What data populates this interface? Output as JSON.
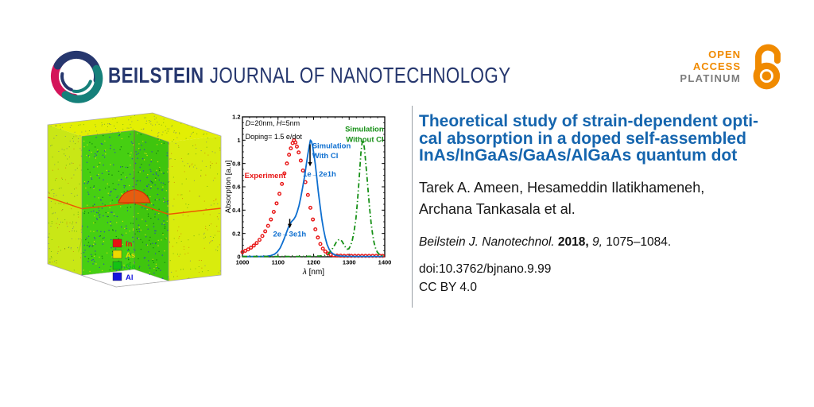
{
  "header": {
    "journal_bold": "BEILSTEIN",
    "journal_rest": "JOURNAL OF NANOTECHNOLOGY",
    "brand": {
      "navy": "#26376E",
      "teal": "#15807A",
      "pink": "#D4145A"
    }
  },
  "open_access": {
    "line1": "OPEN",
    "line2": "ACCESS",
    "line3": "PLATINUM",
    "orange": "#F08A00",
    "gray": "#7C7C7C"
  },
  "article": {
    "title_lines": [
      "Theoretical study of strain-dependent opti-",
      "cal absorption in a doped self-assembled",
      "InAs/InGaAs/GaAs/AlGaAs quantum dot"
    ],
    "title_color": "#1565AE",
    "authors_lines": [
      "Tarek A. Ameen, Hesameddin Ilatikhameneh,",
      "Archana Tankasala et al."
    ],
    "citation": {
      "journal": "Beilstein J. Nanotechnol.",
      "year": "2018,",
      "volume": "9,",
      "pages": "1075–1084."
    },
    "doi": "doi:10.3762/bjnano.9.99",
    "license": "CC BY 4.0"
  },
  "cube_legend": [
    {
      "label": "In",
      "color": "#e81212"
    },
    {
      "label": "As",
      "color": "#eed900"
    },
    {
      "label": "Ga",
      "color": "#14c314"
    },
    {
      "label": "Al",
      "color": "#1414dd"
    }
  ],
  "chart_data": {
    "type": "line",
    "title": "",
    "xlabel_segments": [
      {
        "t": "λ",
        "i": 1
      },
      {
        "t": " [nm]"
      }
    ],
    "ylabel": "Absorption [a.u]",
    "xlim": [
      1000,
      1400
    ],
    "ylim": [
      0,
      1.2
    ],
    "xticks": [
      1000,
      1100,
      1200,
      1300,
      1400
    ],
    "yticks": [
      0,
      0.2,
      0.4,
      0.6,
      0.8,
      1,
      1.2
    ],
    "grid": false,
    "series": [
      {
        "name": "Experiment",
        "color": "#e81616",
        "style": "circles",
        "points": [
          [
            1000,
            0.04
          ],
          [
            1008,
            0.051
          ],
          [
            1016,
            0.063
          ],
          [
            1024,
            0.078
          ],
          [
            1032,
            0.096
          ],
          [
            1040,
            0.118
          ],
          [
            1048,
            0.145
          ],
          [
            1056,
            0.178
          ],
          [
            1064,
            0.218
          ],
          [
            1072,
            0.265
          ],
          [
            1080,
            0.32
          ],
          [
            1088,
            0.385
          ],
          [
            1096,
            0.458
          ],
          [
            1104,
            0.54
          ],
          [
            1111,
            0.625
          ],
          [
            1118,
            0.715
          ],
          [
            1125,
            0.8
          ],
          [
            1131,
            0.875
          ],
          [
            1136,
            0.93
          ],
          [
            1141,
            0.975
          ],
          [
            1145,
            1.0
          ],
          [
            1149,
            0.98
          ],
          [
            1153,
            0.945
          ],
          [
            1158,
            0.895
          ],
          [
            1164,
            0.825
          ],
          [
            1170,
            0.74
          ],
          [
            1177,
            0.64
          ],
          [
            1184,
            0.53
          ],
          [
            1191,
            0.42
          ],
          [
            1198,
            0.32
          ],
          [
            1205,
            0.235
          ],
          [
            1212,
            0.165
          ],
          [
            1219,
            0.11
          ],
          [
            1226,
            0.07
          ],
          [
            1233,
            0.045
          ],
          [
            1240,
            0.028
          ],
          [
            1248,
            0.018
          ],
          [
            1256,
            0.012
          ],
          [
            1266,
            0.01
          ],
          [
            1276,
            0.009
          ],
          [
            1286,
            0.008
          ],
          [
            1296,
            0.008
          ],
          [
            1306,
            0.008
          ],
          [
            1316,
            0.008
          ],
          [
            1326,
            0.008
          ],
          [
            1336,
            0.008
          ],
          [
            1346,
            0.008
          ],
          [
            1356,
            0.008
          ],
          [
            1366,
            0.008
          ],
          [
            1376,
            0.008
          ],
          [
            1386,
            0.008
          ],
          [
            1394,
            0.008
          ]
        ]
      },
      {
        "name": "Simulation With CI",
        "color": "#0e6fd0",
        "style": "solid",
        "points": [
          [
            1000,
            0.003
          ],
          [
            1050,
            0.003
          ],
          [
            1070,
            0.005
          ],
          [
            1080,
            0.01
          ],
          [
            1090,
            0.022
          ],
          [
            1098,
            0.042
          ],
          [
            1106,
            0.075
          ],
          [
            1112,
            0.115
          ],
          [
            1118,
            0.16
          ],
          [
            1124,
            0.21
          ],
          [
            1129,
            0.25
          ],
          [
            1134,
            0.285
          ],
          [
            1139,
            0.305
          ],
          [
            1144,
            0.32
          ],
          [
            1149,
            0.345
          ],
          [
            1154,
            0.385
          ],
          [
            1159,
            0.44
          ],
          [
            1164,
            0.51
          ],
          [
            1169,
            0.59
          ],
          [
            1174,
            0.68
          ],
          [
            1179,
            0.78
          ],
          [
            1184,
            0.88
          ],
          [
            1188,
            0.95
          ],
          [
            1191,
            1.0
          ],
          [
            1194,
            0.99
          ],
          [
            1197,
            0.95
          ],
          [
            1201,
            0.88
          ],
          [
            1205,
            0.79
          ],
          [
            1209,
            0.68
          ],
          [
            1213,
            0.565
          ],
          [
            1218,
            0.44
          ],
          [
            1223,
            0.325
          ],
          [
            1228,
            0.235
          ],
          [
            1233,
            0.16
          ],
          [
            1238,
            0.105
          ],
          [
            1244,
            0.063
          ],
          [
            1250,
            0.037
          ],
          [
            1257,
            0.02
          ],
          [
            1265,
            0.011
          ],
          [
            1276,
            0.006
          ],
          [
            1292,
            0.004
          ],
          [
            1320,
            0.003
          ],
          [
            1396,
            0.003
          ]
        ]
      },
      {
        "name": "Simulation Without CI",
        "color": "#169016",
        "style": "dashdot",
        "points": [
          [
            1000,
            0.002
          ],
          [
            1100,
            0.002
          ],
          [
            1160,
            0.003
          ],
          [
            1200,
            0.004
          ],
          [
            1220,
            0.007
          ],
          [
            1232,
            0.013
          ],
          [
            1242,
            0.028
          ],
          [
            1250,
            0.055
          ],
          [
            1258,
            0.095
          ],
          [
            1264,
            0.125
          ],
          [
            1270,
            0.145
          ],
          [
            1275,
            0.148
          ],
          [
            1280,
            0.132
          ],
          [
            1285,
            0.105
          ],
          [
            1290,
            0.08
          ],
          [
            1294,
            0.065
          ],
          [
            1299,
            0.068
          ],
          [
            1304,
            0.095
          ],
          [
            1309,
            0.145
          ],
          [
            1314,
            0.22
          ],
          [
            1319,
            0.33
          ],
          [
            1323,
            0.46
          ],
          [
            1327,
            0.62
          ],
          [
            1330,
            0.76
          ],
          [
            1333,
            0.89
          ],
          [
            1336,
            0.97
          ],
          [
            1338,
            1.0
          ],
          [
            1340,
            0.985
          ],
          [
            1343,
            0.925
          ],
          [
            1346,
            0.83
          ],
          [
            1350,
            0.69
          ],
          [
            1354,
            0.54
          ],
          [
            1358,
            0.4
          ],
          [
            1362,
            0.28
          ],
          [
            1366,
            0.19
          ],
          [
            1370,
            0.12
          ],
          [
            1374,
            0.075
          ],
          [
            1379,
            0.04
          ],
          [
            1385,
            0.02
          ],
          [
            1391,
            0.01
          ],
          [
            1396,
            0.006
          ]
        ]
      }
    ],
    "texts": [
      {
        "segments": [
          {
            "t": "D",
            "i": 1
          },
          {
            "t": "=20nm, "
          },
          {
            "t": "H",
            "i": 1
          },
          {
            "t": "=5nm"
          }
        ],
        "x": 1008,
        "y": 1.125,
        "color": "#000000",
        "anchor": "start",
        "size": 9,
        "bold": false
      },
      {
        "text": "Doping= 1.5 e/dot",
        "x": 1008,
        "y": 1.01,
        "color": "#000000",
        "anchor": "start",
        "size": 9,
        "bold": false
      },
      {
        "text": "Experiment",
        "x": 1006,
        "y": 0.675,
        "color": "#e81616",
        "anchor": "start",
        "size": 9.5,
        "bold": true
      },
      {
        "text": "Simulation",
        "x": 1196,
        "y": 0.93,
        "color": "#0e6fd0",
        "anchor": "start",
        "size": 9.5,
        "bold": true
      },
      {
        "text": "With CI",
        "x": 1196,
        "y": 0.845,
        "color": "#0e6fd0",
        "anchor": "start",
        "size": 9.5,
        "bold": true
      },
      {
        "text": "Simulation",
        "x": 1397,
        "y": 1.075,
        "color": "#169016",
        "anchor": "end",
        "size": 9.5,
        "bold": true
      },
      {
        "text": "Without CI",
        "x": 1397,
        "y": 0.985,
        "color": "#169016",
        "anchor": "end",
        "size": 9.5,
        "bold": true
      },
      {
        "text": "1e→2e1h",
        "x": 1170,
        "y": 0.69,
        "color": "#0e6fd0",
        "anchor": "start",
        "size": 9.5,
        "bold": true
      },
      {
        "text": "2e→3e1h",
        "x": 1086,
        "y": 0.175,
        "color": "#0e6fd0",
        "anchor": "start",
        "size": 9.5,
        "bold": true
      }
    ],
    "arrows": [
      {
        "x": 1190,
        "y_from": 0.965,
        "y_to": 0.775
      },
      {
        "x": 1133,
        "y_from": 0.325,
        "y_to": 0.245
      }
    ]
  }
}
